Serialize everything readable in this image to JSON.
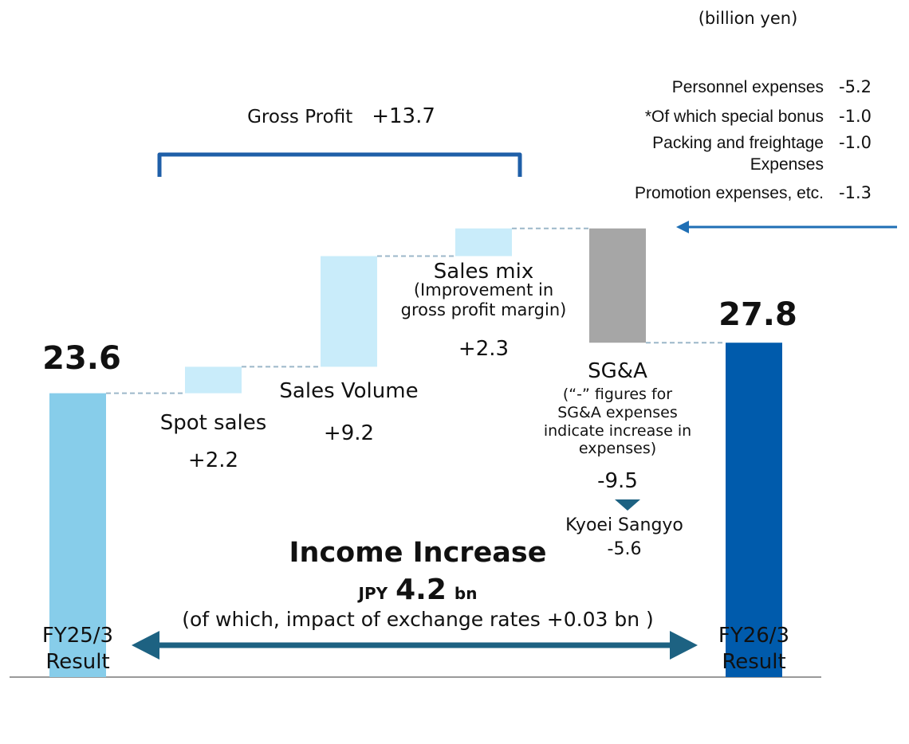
{
  "chart_data": {
    "type": "waterfall",
    "unit": "(billion yen)",
    "categories": [
      "FY25/3 Result",
      "Spot sales",
      "Sales Volume",
      "Sales mix",
      "SG&A",
      "FY26/3 Result"
    ],
    "category_notes": [
      null,
      null,
      null,
      "(Improvement in gross profit margin)",
      "(“-” figures for SG&A expenses indicate increase in expenses)",
      null
    ],
    "values": [
      23.6,
      2.2,
      9.2,
      2.3,
      -9.5,
      27.8
    ],
    "value_labels": [
      "23.6",
      "+2.2",
      "+9.2",
      "+2.3",
      "-9.5",
      "27.8"
    ],
    "totals": [
      true,
      false,
      false,
      false,
      false,
      true
    ],
    "colors": [
      "#87cdea",
      "#c9ecfa",
      "#c9ecfa",
      "#c9ecfa",
      "#a6a6a6",
      "#005bac"
    ],
    "gross_profit": {
      "label": "Gross Profit",
      "amount": "+13.7"
    },
    "sga_breakdown": [
      {
        "label": "Personnel expenses",
        "amount": "-5.2"
      },
      {
        "label": "*Of which special bonus",
        "amount": "-1.0"
      },
      {
        "label": "Packing and freightage Expenses",
        "amount": "-1.0"
      },
      {
        "label": "Promotion expenses, etc.",
        "amount": "-1.3"
      }
    ],
    "sga_sub": {
      "label": "Kyoei Sangyo",
      "amount": "-5.6"
    },
    "income_increase": {
      "title": "Income Increase",
      "prefix": "JPY",
      "amount": "4.2",
      "suffix": "bn",
      "note": "(of which, impact of exchange rates +0.03 bn )"
    }
  }
}
